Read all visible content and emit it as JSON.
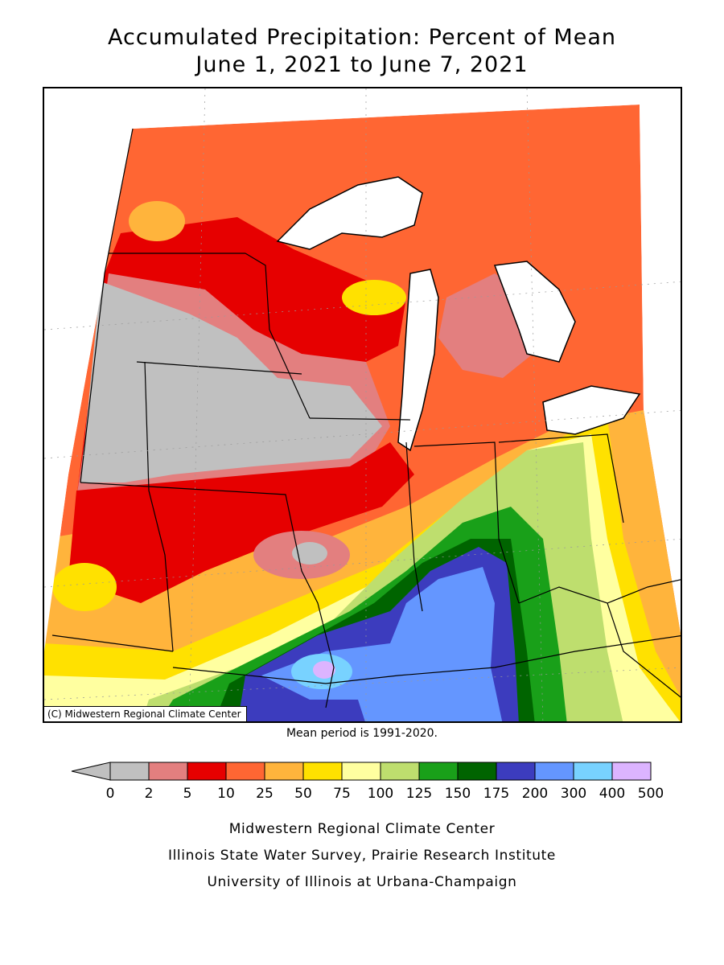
{
  "title": {
    "line1": "Accumulated Precipitation: Percent of Mean",
    "line2": "June 1, 2021 to June 7, 2021"
  },
  "map": {
    "copyright": "(C) Midwestern Regional Climate Center",
    "mean_period": "Mean period is 1991-2020."
  },
  "legend": {
    "labels": [
      "0",
      "2",
      "5",
      "10",
      "25",
      "50",
      "75",
      "100",
      "125",
      "150",
      "175",
      "200",
      "300",
      "400",
      "500"
    ],
    "colors": [
      "#c0c0c0",
      "#e37f7f",
      "#e60000",
      "#ff6633",
      "#ffb43c",
      "#ffe100",
      "#ffffa0",
      "#bede6e",
      "#19a019",
      "#006400",
      "#3c3cbe",
      "#6496ff",
      "#78d2ff",
      "#dcb4ff"
    ]
  },
  "credits": {
    "line1": "Midwestern Regional Climate Center",
    "line2": "Illinois State Water Survey, Prairie Research Institute",
    "line3": "University of Illinois at Urbana-Champaign"
  }
}
